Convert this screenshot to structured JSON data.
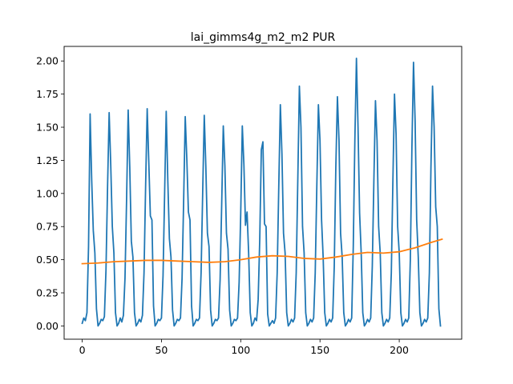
{
  "chart_data": {
    "type": "line",
    "title": "lai_gimms4g_m2_m2 PUR",
    "xlabel": "",
    "ylabel": "",
    "xlim": [
      -11.4,
      239.4
    ],
    "ylim": [
      -0.1,
      2.11
    ],
    "xticks": [
      0,
      50,
      100,
      150,
      200
    ],
    "yticks": [
      0.0,
      0.25,
      0.5,
      0.75,
      1.0,
      1.25,
      1.5,
      1.75,
      2.0
    ],
    "xtick_labels": [
      "0",
      "50",
      "100",
      "150",
      "200"
    ],
    "ytick_labels": [
      "0.00",
      "0.25",
      "0.50",
      "0.75",
      "1.00",
      "1.25",
      "1.50",
      "1.75",
      "2.00"
    ],
    "grid": false,
    "legend": "none",
    "series": [
      {
        "color": "#1f77b4",
        "y": [
          0.02,
          0.06,
          0.04,
          0.1,
          0.6,
          1.6,
          1.1,
          0.72,
          0.55,
          0.13,
          0.0,
          0.02,
          0.05,
          0.04,
          0.07,
          0.42,
          1.05,
          1.61,
          1.22,
          0.75,
          0.55,
          0.1,
          0.0,
          0.02,
          0.06,
          0.03,
          0.08,
          0.36,
          0.95,
          1.63,
          1.2,
          0.64,
          0.52,
          0.1,
          0.0,
          0.02,
          0.05,
          0.03,
          0.08,
          0.4,
          1.05,
          1.64,
          1.24,
          0.83,
          0.8,
          0.15,
          0.0,
          0.02,
          0.05,
          0.04,
          0.06,
          0.38,
          1.0,
          1.62,
          1.1,
          0.66,
          0.52,
          0.12,
          0.0,
          0.02,
          0.05,
          0.04,
          0.06,
          0.36,
          0.95,
          1.58,
          1.26,
          0.86,
          0.8,
          0.15,
          0.0,
          0.02,
          0.05,
          0.04,
          0.06,
          0.4,
          1.0,
          1.59,
          1.2,
          0.7,
          0.6,
          0.12,
          0.0,
          0.02,
          0.05,
          0.04,
          0.06,
          0.35,
          0.92,
          1.51,
          1.21,
          0.7,
          0.58,
          0.12,
          0.0,
          0.02,
          0.05,
          0.04,
          0.06,
          0.33,
          0.85,
          1.51,
          1.22,
          0.76,
          0.86,
          0.55,
          0.1,
          0.0,
          0.02,
          0.06,
          0.04,
          0.2,
          0.65,
          1.33,
          1.39,
          0.77,
          0.75,
          0.09,
          0.0,
          0.02,
          0.04,
          0.02,
          0.06,
          0.4,
          1.05,
          1.67,
          1.3,
          0.7,
          0.55,
          0.1,
          0.0,
          0.02,
          0.05,
          0.03,
          0.06,
          0.4,
          1.1,
          1.81,
          1.5,
          0.75,
          0.55,
          0.1,
          0.0,
          0.02,
          0.05,
          0.03,
          0.06,
          0.4,
          1.05,
          1.67,
          1.4,
          0.8,
          0.52,
          0.1,
          0.0,
          0.02,
          0.05,
          0.03,
          0.06,
          0.45,
          1.2,
          1.73,
          1.4,
          0.7,
          0.52,
          0.1,
          0.0,
          0.02,
          0.05,
          0.03,
          0.06,
          0.6,
          1.4,
          2.02,
          1.5,
          0.85,
          0.55,
          0.1,
          0.0,
          0.02,
          0.05,
          0.03,
          0.06,
          0.45,
          1.1,
          1.7,
          1.4,
          0.75,
          0.55,
          0.1,
          0.0,
          0.02,
          0.05,
          0.03,
          0.06,
          0.4,
          1.1,
          1.75,
          1.45,
          0.75,
          0.55,
          0.1,
          0.0,
          0.02,
          0.05,
          0.03,
          0.06,
          0.5,
          1.35,
          1.99,
          1.55,
          0.8,
          0.52,
          0.1,
          0.0,
          0.02,
          0.05,
          0.03,
          0.06,
          0.4,
          1.2,
          1.81,
          1.5,
          0.9,
          0.75,
          0.13,
          0.0
        ]
      },
      {
        "color": "#ff7f0e",
        "x": [
          0,
          10,
          20,
          30,
          40,
          50,
          60,
          70,
          80,
          90,
          100,
          110,
          120,
          130,
          140,
          150,
          160,
          170,
          180,
          190,
          200,
          210,
          220,
          227
        ],
        "y": [
          0.47,
          0.475,
          0.485,
          0.49,
          0.495,
          0.495,
          0.49,
          0.485,
          0.48,
          0.485,
          0.5,
          0.52,
          0.53,
          0.525,
          0.51,
          0.505,
          0.52,
          0.54,
          0.555,
          0.55,
          0.56,
          0.59,
          0.63,
          0.655
        ]
      }
    ]
  }
}
